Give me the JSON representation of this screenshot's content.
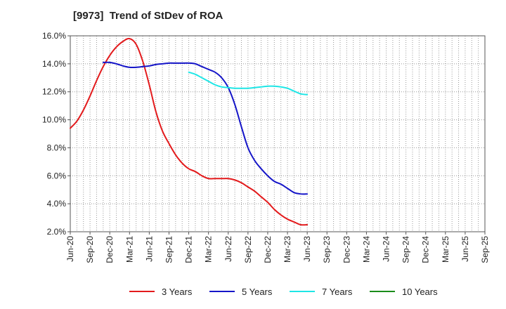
{
  "chart_data": {
    "type": "line",
    "title": "[9973]  Trend of StDev of ROA",
    "xlabel": "",
    "ylabel": "",
    "ylim": [
      2.0,
      16.0
    ],
    "ytick_labels": [
      "2.0%",
      "4.0%",
      "6.0%",
      "8.0%",
      "10.0%",
      "12.0%",
      "14.0%",
      "16.0%"
    ],
    "ytick_values": [
      2,
      4,
      6,
      8,
      10,
      12,
      14,
      16
    ],
    "categories": [
      "Jun-20",
      "Sep-20",
      "Dec-20",
      "Mar-21",
      "Jun-21",
      "Sep-21",
      "Dec-21",
      "Mar-22",
      "Jun-22",
      "Sep-22",
      "Dec-22",
      "Mar-23",
      "Jun-23",
      "Sep-23",
      "Dec-23",
      "Mar-24",
      "Jun-24",
      "Sep-24",
      "Dec-24",
      "Mar-25",
      "Jun-25",
      "Sep-25"
    ],
    "grid": true,
    "legend_position": "bottom",
    "series": [
      {
        "name": "3 Years",
        "color": "#e31a1c",
        "points": [
          [
            0,
            9.4
          ],
          [
            0.333,
            9.9
          ],
          [
            0.667,
            10.7
          ],
          [
            1,
            11.7
          ],
          [
            1.333,
            12.8
          ],
          [
            1.667,
            13.8
          ],
          [
            2,
            14.6
          ],
          [
            2.333,
            15.2
          ],
          [
            2.667,
            15.6
          ],
          [
            3,
            15.8
          ],
          [
            3.333,
            15.4
          ],
          [
            3.667,
            14.2
          ],
          [
            4,
            12.5
          ],
          [
            4.333,
            10.6
          ],
          [
            4.667,
            9.2
          ],
          [
            5,
            8.3
          ],
          [
            5.333,
            7.5
          ],
          [
            5.667,
            6.9
          ],
          [
            6,
            6.5
          ],
          [
            6.333,
            6.3
          ],
          [
            6.667,
            6.0
          ],
          [
            7,
            5.8
          ],
          [
            7.333,
            5.8
          ],
          [
            7.667,
            5.8
          ],
          [
            8,
            5.8
          ],
          [
            8.333,
            5.7
          ],
          [
            8.667,
            5.5
          ],
          [
            9,
            5.2
          ],
          [
            9.333,
            4.9
          ],
          [
            9.667,
            4.5
          ],
          [
            10,
            4.1
          ],
          [
            10.333,
            3.6
          ],
          [
            10.667,
            3.2
          ],
          [
            11,
            2.9
          ],
          [
            11.333,
            2.7
          ],
          [
            11.667,
            2.5
          ],
          [
            12,
            2.5
          ]
        ]
      },
      {
        "name": "5 Years",
        "color": "#1515c8",
        "points": [
          [
            1.667,
            14.1
          ],
          [
            2,
            14.1
          ],
          [
            2.333,
            14.0
          ],
          [
            2.667,
            13.85
          ],
          [
            3,
            13.75
          ],
          [
            3.333,
            13.75
          ],
          [
            3.667,
            13.8
          ],
          [
            4,
            13.85
          ],
          [
            4.333,
            13.95
          ],
          [
            4.667,
            14.0
          ],
          [
            5,
            14.05
          ],
          [
            5.333,
            14.05
          ],
          [
            5.667,
            14.05
          ],
          [
            6,
            14.05
          ],
          [
            6.333,
            14.0
          ],
          [
            6.667,
            13.8
          ],
          [
            7,
            13.6
          ],
          [
            7.333,
            13.4
          ],
          [
            7.667,
            13.0
          ],
          [
            8,
            12.3
          ],
          [
            8.333,
            11.1
          ],
          [
            8.667,
            9.5
          ],
          [
            9,
            8.0
          ],
          [
            9.333,
            7.1
          ],
          [
            9.667,
            6.5
          ],
          [
            10,
            6.0
          ],
          [
            10.333,
            5.6
          ],
          [
            10.667,
            5.4
          ],
          [
            11,
            5.1
          ],
          [
            11.333,
            4.8
          ],
          [
            11.667,
            4.7
          ],
          [
            12,
            4.7
          ]
        ]
      },
      {
        "name": "7 Years",
        "color": "#1ee6e6",
        "points": [
          [
            6,
            13.4
          ],
          [
            6.333,
            13.25
          ],
          [
            6.667,
            13.0
          ],
          [
            7,
            12.75
          ],
          [
            7.333,
            12.5
          ],
          [
            7.667,
            12.35
          ],
          [
            8,
            12.3
          ],
          [
            8.333,
            12.25
          ],
          [
            8.667,
            12.25
          ],
          [
            9,
            12.25
          ],
          [
            9.333,
            12.3
          ],
          [
            9.667,
            12.35
          ],
          [
            10,
            12.4
          ],
          [
            10.333,
            12.4
          ],
          [
            10.667,
            12.35
          ],
          [
            11,
            12.25
          ],
          [
            11.333,
            12.05
          ],
          [
            11.667,
            11.85
          ],
          [
            12,
            11.8
          ]
        ]
      },
      {
        "name": "10 Years",
        "color": "#1a8c1a",
        "points": []
      }
    ]
  }
}
